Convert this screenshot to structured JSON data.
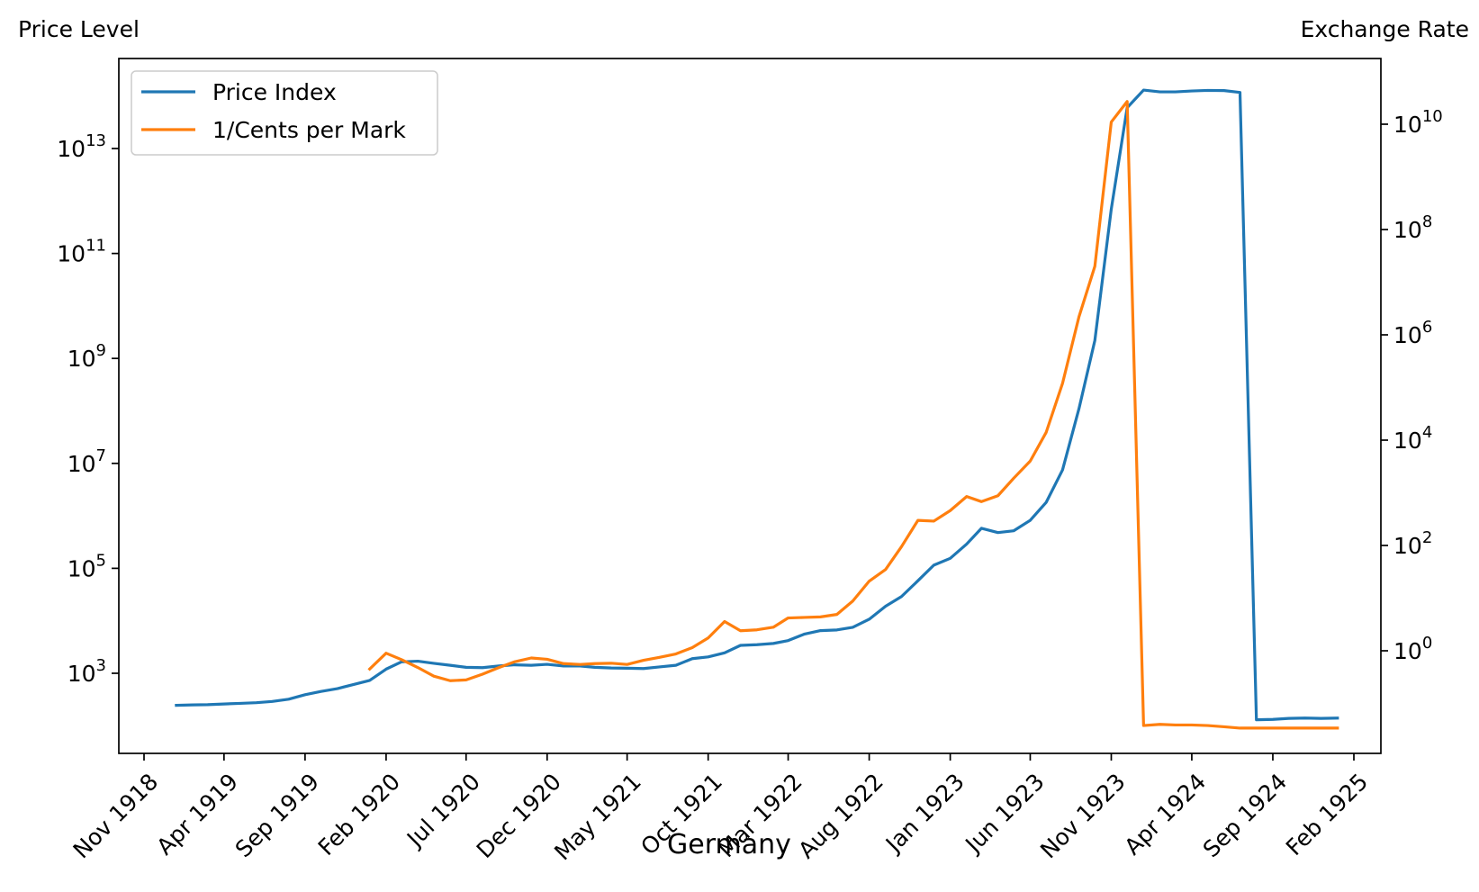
{
  "chart_data": {
    "type": "line",
    "title": "Germany",
    "left_axis": {
      "label": "Price Level",
      "scale": "log",
      "ticks": [
        {
          "value": 1000.0,
          "mantissa": "10",
          "exp": "3"
        },
        {
          "value": 100000.0,
          "mantissa": "10",
          "exp": "5"
        },
        {
          "value": 10000000.0,
          "mantissa": "10",
          "exp": "7"
        },
        {
          "value": 1000000000.0,
          "mantissa": "10",
          "exp": "9"
        },
        {
          "value": 100000000000.0,
          "mantissa": "10",
          "exp": "11"
        },
        {
          "value": 10000000000000.0,
          "mantissa": "10",
          "exp": "13"
        }
      ]
    },
    "right_axis": {
      "label": "Exchange Rate",
      "scale": "log",
      "ticks": [
        {
          "value": 1,
          "mantissa": "10",
          "exp": "0"
        },
        {
          "value": 100.0,
          "mantissa": "10",
          "exp": "2"
        },
        {
          "value": 10000.0,
          "mantissa": "10",
          "exp": "4"
        },
        {
          "value": 1000000.0,
          "mantissa": "10",
          "exp": "6"
        },
        {
          "value": 100000000.0,
          "mantissa": "10",
          "exp": "8"
        },
        {
          "value": 10000000000.0,
          "mantissa": "10",
          "exp": "10"
        }
      ]
    },
    "x_ticks": [
      {
        "date": "1918-11-01",
        "label": "Nov 1918"
      },
      {
        "date": "1919-04-01",
        "label": "Apr 1919"
      },
      {
        "date": "1919-09-01",
        "label": "Sep 1919"
      },
      {
        "date": "1920-02-01",
        "label": "Feb 1920"
      },
      {
        "date": "1920-07-01",
        "label": "Jul 1920"
      },
      {
        "date": "1920-12-01",
        "label": "Dec 1920"
      },
      {
        "date": "1921-05-01",
        "label": "May 1921"
      },
      {
        "date": "1921-10-01",
        "label": "Oct 1921"
      },
      {
        "date": "1922-03-01",
        "label": "Mar 1922"
      },
      {
        "date": "1922-08-01",
        "label": "Aug 1922"
      },
      {
        "date": "1923-01-01",
        "label": "Jan 1923"
      },
      {
        "date": "1923-06-01",
        "label": "Jun 1923"
      },
      {
        "date": "1923-11-01",
        "label": "Nov 1923"
      },
      {
        "date": "1924-04-01",
        "label": "Apr 1924"
      },
      {
        "date": "1924-09-01",
        "label": "Sep 1924"
      },
      {
        "date": "1925-02-01",
        "label": "Feb 1925"
      }
    ],
    "legend_position": "upper-left",
    "grid": false,
    "series": [
      {
        "name": "Price Index",
        "color": "#1f77b4",
        "axis": "left",
        "points": [
          [
            "1919-01-01",
            245
          ],
          [
            "1919-02-01",
            250
          ],
          [
            "1919-03-01",
            252
          ],
          [
            "1919-04-01",
            260
          ],
          [
            "1919-05-01",
            267
          ],
          [
            "1919-06-01",
            275
          ],
          [
            "1919-07-01",
            290
          ],
          [
            "1919-08-01",
            320
          ],
          [
            "1919-09-01",
            390
          ],
          [
            "1919-10-01",
            450
          ],
          [
            "1919-11-01",
            510
          ],
          [
            "1919-12-01",
            610
          ],
          [
            "1920-01-01",
            730
          ],
          [
            "1920-02-01",
            1200
          ],
          [
            "1920-03-01",
            1650
          ],
          [
            "1920-04-01",
            1700
          ],
          [
            "1920-05-01",
            1550
          ],
          [
            "1920-06-01",
            1420
          ],
          [
            "1920-07-01",
            1300
          ],
          [
            "1920-08-01",
            1280
          ],
          [
            "1920-09-01",
            1380
          ],
          [
            "1920-10-01",
            1450
          ],
          [
            "1920-11-01",
            1420
          ],
          [
            "1920-12-01",
            1480
          ],
          [
            "1921-01-01",
            1380
          ],
          [
            "1921-02-01",
            1380
          ],
          [
            "1921-03-01",
            1300
          ],
          [
            "1921-04-01",
            1260
          ],
          [
            "1921-05-01",
            1250
          ],
          [
            "1921-06-01",
            1230
          ],
          [
            "1921-07-01",
            1320
          ],
          [
            "1921-08-01",
            1420
          ],
          [
            "1921-09-01",
            1900
          ],
          [
            "1921-10-01",
            2050
          ],
          [
            "1921-11-01",
            2450
          ],
          [
            "1921-12-01",
            3400
          ],
          [
            "1922-01-01",
            3500
          ],
          [
            "1922-02-01",
            3700
          ],
          [
            "1922-03-01",
            4200
          ],
          [
            "1922-04-01",
            5600
          ],
          [
            "1922-05-01",
            6500
          ],
          [
            "1922-06-01",
            6700
          ],
          [
            "1922-07-01",
            7500
          ],
          [
            "1922-08-01",
            10700
          ],
          [
            "1922-09-01",
            19000
          ],
          [
            "1922-10-01",
            29000
          ],
          [
            "1922-11-01",
            58000
          ],
          [
            "1922-12-01",
            115000
          ],
          [
            "1923-01-01",
            155000
          ],
          [
            "1923-02-01",
            290000
          ],
          [
            "1923-03-01",
            580000
          ],
          [
            "1923-04-01",
            480000
          ],
          [
            "1923-05-01",
            520000
          ],
          [
            "1923-06-01",
            820000
          ],
          [
            "1923-07-01",
            1800000
          ],
          [
            "1923-08-01",
            7500000
          ],
          [
            "1923-09-01",
            110000000
          ],
          [
            "1923-10-01",
            2200000000
          ],
          [
            "1923-11-01",
            700000000000
          ],
          [
            "1923-12-01",
            60000000000000
          ],
          [
            "1924-01-01",
            130000000000000
          ],
          [
            "1924-02-01",
            120000000000000
          ],
          [
            "1924-03-01",
            120000000000000
          ],
          [
            "1924-04-01",
            125000000000000
          ],
          [
            "1924-05-01",
            128000000000000
          ],
          [
            "1924-06-01",
            127000000000000
          ],
          [
            "1924-07-01",
            117000000000000
          ],
          [
            "1924-08-01",
            130
          ],
          [
            "1924-09-01",
            132
          ],
          [
            "1924-10-01",
            138
          ],
          [
            "1924-11-01",
            140
          ],
          [
            "1924-12-01",
            138
          ],
          [
            "1925-01-01",
            140
          ]
        ]
      },
      {
        "name": "1/Cents per Mark",
        "color": "#ff7f0e",
        "axis": "right",
        "points": [
          [
            "1920-01-01",
            0.45
          ],
          [
            "1920-02-01",
            0.9
          ],
          [
            "1920-03-01",
            0.68
          ],
          [
            "1920-04-01",
            0.48
          ],
          [
            "1920-05-01",
            0.33
          ],
          [
            "1920-06-01",
            0.27
          ],
          [
            "1920-07-01",
            0.28
          ],
          [
            "1920-08-01",
            0.36
          ],
          [
            "1920-09-01",
            0.48
          ],
          [
            "1920-10-01",
            0.62
          ],
          [
            "1920-11-01",
            0.73
          ],
          [
            "1920-12-01",
            0.69
          ],
          [
            "1921-01-01",
            0.57
          ],
          [
            "1921-02-01",
            0.55
          ],
          [
            "1921-03-01",
            0.57
          ],
          [
            "1921-04-01",
            0.58
          ],
          [
            "1921-05-01",
            0.55
          ],
          [
            "1921-06-01",
            0.66
          ],
          [
            "1921-07-01",
            0.75
          ],
          [
            "1921-08-01",
            0.87
          ],
          [
            "1921-09-01",
            1.15
          ],
          [
            "1921-10-01",
            1.75
          ],
          [
            "1921-11-01",
            3.6
          ],
          [
            "1921-12-01",
            2.4
          ],
          [
            "1922-01-01",
            2.5
          ],
          [
            "1922-02-01",
            2.8
          ],
          [
            "1922-03-01",
            4.2
          ],
          [
            "1922-04-01",
            4.3
          ],
          [
            "1922-05-01",
            4.4
          ],
          [
            "1922-06-01",
            4.9
          ],
          [
            "1922-07-01",
            8.8
          ],
          [
            "1922-08-01",
            21
          ],
          [
            "1922-09-01",
            35
          ],
          [
            "1922-10-01",
            95
          ],
          [
            "1922-11-01",
            300
          ],
          [
            "1922-12-01",
            290
          ],
          [
            "1923-01-01",
            460
          ],
          [
            "1923-02-01",
            850
          ],
          [
            "1923-03-01",
            680
          ],
          [
            "1923-04-01",
            880
          ],
          [
            "1923-05-01",
            1900
          ],
          [
            "1923-06-01",
            4000
          ],
          [
            "1923-07-01",
            14000
          ],
          [
            "1923-08-01",
            120000
          ],
          [
            "1923-09-01",
            2200000
          ],
          [
            "1923-10-01",
            20000000
          ],
          [
            "1923-11-01",
            11000000000
          ],
          [
            "1923-12-01",
            27000000000
          ],
          [
            "1924-01-01",
            0.038
          ],
          [
            "1924-02-01",
            0.04
          ],
          [
            "1924-03-01",
            0.039
          ],
          [
            "1924-04-01",
            0.039
          ],
          [
            "1924-05-01",
            0.038
          ],
          [
            "1924-06-01",
            0.036
          ],
          [
            "1924-07-01",
            0.034
          ],
          [
            "1924-08-01",
            0.034
          ],
          [
            "1924-09-01",
            0.034
          ],
          [
            "1924-10-01",
            0.034
          ],
          [
            "1924-11-01",
            0.034
          ],
          [
            "1924-12-01",
            0.034
          ],
          [
            "1925-01-01",
            0.034
          ]
        ]
      }
    ]
  }
}
